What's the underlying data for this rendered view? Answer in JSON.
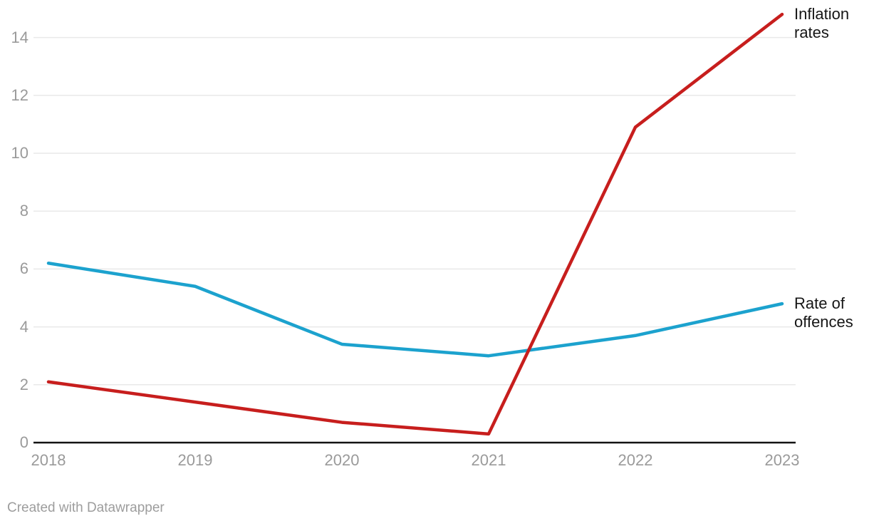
{
  "footer": {
    "credit": "Created with Datawrapper"
  },
  "chart_data": {
    "type": "line",
    "categories": [
      "2018",
      "2019",
      "2020",
      "2021",
      "2022",
      "2023"
    ],
    "series": [
      {
        "name": "Inflation rates",
        "values": [
          2.1,
          1.4,
          0.7,
          0.3,
          10.9,
          14.8
        ],
        "color": "#C71E1D"
      },
      {
        "name": "Rate of offences",
        "values": [
          6.2,
          5.4,
          3.4,
          3.0,
          3.7,
          4.8
        ],
        "color": "#1CA2CE"
      }
    ],
    "yticks": [
      0,
      2,
      4,
      6,
      8,
      10,
      12,
      14
    ],
    "ylim": [
      0,
      15
    ],
    "xlabel": "",
    "ylabel": "",
    "title": "",
    "grid": "horizontal",
    "legend_position": "right-of-line-end",
    "tick_label_color": "#9A9A9A",
    "gridline_color": "#E9E9E9",
    "baseline_color": "#131313",
    "series_label_color": "#161616"
  }
}
